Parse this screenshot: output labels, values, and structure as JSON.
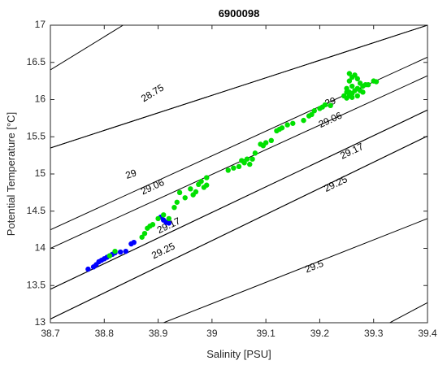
{
  "chart_data": {
    "type": "scatter",
    "title": "6900098",
    "xlabel": "Salinity [PSU]",
    "ylabel": "Potential Temperature [°C]",
    "xlim": [
      38.7,
      39.4
    ],
    "ylim": [
      13,
      17
    ],
    "x_ticks": [
      "38.7",
      "38.8",
      "38.9",
      "39",
      "39.1",
      "39.2",
      "39.3",
      "39.4"
    ],
    "y_ticks": [
      "13",
      "13.5",
      "14",
      "14.5",
      "15",
      "15.5",
      "16",
      "16.5",
      "17"
    ],
    "grid": false,
    "contours": [
      {
        "label": "28.75",
        "line": [
          [
            38.7,
            16.4
          ],
          [
            38.835,
            17.0
          ]
        ],
        "label_at": [
          38.89,
          16.08
        ]
      },
      {
        "label": "29",
        "line": [
          [
            38.7,
            15.35
          ],
          [
            39.4,
            17.0
          ]
        ],
        "label_at": [
          38.85,
          14.99
        ]
      },
      {
        "label": "29.06",
        "line": [
          [
            38.7,
            14.25
          ],
          [
            39.4,
            16.57
          ]
        ],
        "label_at": [
          38.89,
          14.82
        ]
      },
      {
        "label": "29.06",
        "line": [
          [
            38.7,
            14.0
          ],
          [
            39.4,
            16.32
          ]
        ],
        "label_at": [
          39.22,
          15.72
        ]
      },
      {
        "label": "29.17",
        "line": [
          [
            38.7,
            13.45
          ],
          [
            39.4,
            15.86
          ]
        ],
        "label_at": [
          38.92,
          14.3
        ]
      },
      {
        "label": "29.17",
        "line": [
          [
            38.7,
            13.45
          ],
          [
            39.4,
            15.86
          ]
        ],
        "label_at": [
          39.26,
          15.3
        ]
      },
      {
        "label": "29.25",
        "line": [
          [
            38.7,
            13.05
          ],
          [
            39.4,
            15.51
          ]
        ],
        "label_at": [
          38.91,
          13.96
        ]
      },
      {
        "label": "29.25",
        "line": [
          [
            38.7,
            13.05
          ],
          [
            39.4,
            15.51
          ]
        ],
        "label_at": [
          39.23,
          14.86
        ]
      },
      {
        "label": "29.5",
        "line": [
          [
            38.91,
            13.0
          ],
          [
            39.4,
            14.4
          ]
        ],
        "label_at": [
          39.19,
          13.75
        ]
      },
      {
        "label": "29",
        "line": [
          [
            38.7,
            15.35
          ],
          [
            39.4,
            17.0
          ]
        ],
        "label_at": [
          39.22,
          15.96
        ]
      },
      {
        "label": "",
        "line": [
          [
            39.33,
            13.0
          ],
          [
            39.4,
            13.27
          ]
        ],
        "label_at": null
      }
    ],
    "series": [
      {
        "color": "#0000ff",
        "points": [
          [
            38.77,
            13.72
          ],
          [
            38.78,
            13.75
          ],
          [
            38.785,
            13.78
          ],
          [
            38.79,
            13.82
          ],
          [
            38.795,
            13.84
          ],
          [
            38.8,
            13.86
          ],
          [
            38.805,
            13.88
          ],
          [
            38.81,
            13.9
          ],
          [
            38.815,
            13.92
          ],
          [
            38.82,
            13.94
          ],
          [
            38.83,
            13.95
          ],
          [
            38.84,
            13.96
          ],
          [
            38.85,
            14.06
          ],
          [
            38.855,
            14.08
          ],
          [
            38.905,
            14.42
          ],
          [
            38.91,
            14.38
          ],
          [
            38.915,
            14.35
          ],
          [
            38.92,
            14.34
          ]
        ]
      },
      {
        "color": "#00e000",
        "points": [
          [
            38.81,
            13.9
          ],
          [
            38.82,
            13.96
          ],
          [
            38.87,
            14.15
          ],
          [
            38.875,
            14.2
          ],
          [
            38.88,
            14.27
          ],
          [
            38.885,
            14.3
          ],
          [
            38.89,
            14.32
          ],
          [
            38.9,
            14.4
          ],
          [
            38.91,
            14.45
          ],
          [
            38.92,
            14.4
          ],
          [
            38.93,
            14.55
          ],
          [
            38.935,
            14.62
          ],
          [
            38.94,
            14.75
          ],
          [
            38.95,
            14.68
          ],
          [
            38.96,
            14.8
          ],
          [
            38.965,
            14.72
          ],
          [
            38.97,
            14.76
          ],
          [
            38.975,
            14.86
          ],
          [
            38.98,
            14.9
          ],
          [
            38.985,
            14.82
          ],
          [
            38.99,
            14.95
          ],
          [
            38.99,
            14.85
          ],
          [
            39.03,
            15.05
          ],
          [
            39.04,
            15.08
          ],
          [
            39.05,
            15.1
          ],
          [
            39.055,
            15.18
          ],
          [
            39.06,
            15.15
          ],
          [
            39.065,
            15.2
          ],
          [
            39.07,
            15.13
          ],
          [
            39.075,
            15.2
          ],
          [
            39.08,
            15.28
          ],
          [
            39.09,
            15.4
          ],
          [
            39.095,
            15.38
          ],
          [
            39.1,
            15.42
          ],
          [
            39.11,
            15.45
          ],
          [
            39.12,
            15.58
          ],
          [
            39.125,
            15.6
          ],
          [
            39.13,
            15.62
          ],
          [
            39.14,
            15.66
          ],
          [
            39.15,
            15.68
          ],
          [
            39.17,
            15.72
          ],
          [
            39.18,
            15.78
          ],
          [
            39.185,
            15.8
          ],
          [
            39.19,
            15.85
          ],
          [
            39.2,
            15.88
          ],
          [
            39.205,
            15.9
          ],
          [
            39.21,
            15.93
          ],
          [
            39.22,
            15.92
          ],
          [
            39.245,
            16.05
          ],
          [
            39.25,
            16.02
          ],
          [
            39.255,
            16.1
          ],
          [
            39.26,
            16.08
          ],
          [
            39.265,
            16.12
          ],
          [
            39.27,
            16.15
          ],
          [
            39.275,
            16.12
          ],
          [
            39.28,
            16.18
          ],
          [
            39.285,
            16.2
          ],
          [
            39.29,
            16.2
          ],
          [
            39.3,
            16.25
          ],
          [
            39.305,
            16.24
          ],
          [
            39.25,
            16.15
          ],
          [
            39.255,
            16.25
          ],
          [
            39.26,
            16.3
          ],
          [
            39.255,
            16.35
          ],
          [
            39.265,
            16.33
          ],
          [
            39.27,
            16.28
          ],
          [
            39.275,
            16.22
          ],
          [
            39.26,
            16.18
          ],
          [
            39.25,
            16.1
          ],
          [
            39.26,
            16.03
          ],
          [
            39.27,
            16.05
          ],
          [
            39.28,
            16.1
          ],
          [
            39.255,
            16.05
          ]
        ]
      }
    ]
  }
}
